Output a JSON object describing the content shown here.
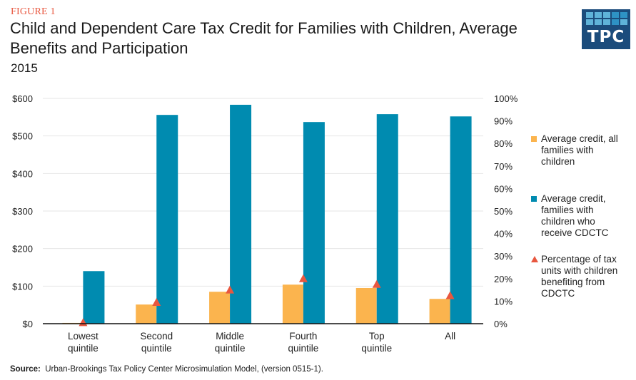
{
  "figure_label": "FIGURE 1",
  "title": "Child and Dependent Care Tax Credit for Families with Children, Average Benefits and Participation",
  "subtitle": "2015",
  "logo": {
    "text": "TPC"
  },
  "source": {
    "label": "Source:",
    "text": "Urban-Brookings Tax Policy Center Microsimulation Model, (version 0515-1)."
  },
  "colors": {
    "orange": "#fbb44e",
    "blue": "#008bb0",
    "triangle": "#e8573f",
    "gridline": "#e6e6e6",
    "axis": "#111111"
  },
  "chart_data": {
    "type": "bar",
    "title": "Child and Dependent Care Tax Credit for Families with Children, Average Benefits and Participation",
    "subtitle": "2015",
    "categories": [
      "Lowest quintile",
      "Second quintile",
      "Middle quintile",
      "Fourth quintile",
      "Top quintile",
      "All"
    ],
    "category_lines": [
      [
        "Lowest",
        "quintile"
      ],
      [
        "Second",
        "quintile"
      ],
      [
        "Middle",
        "quintile"
      ],
      [
        "Fourth",
        "quintile"
      ],
      [
        "Top",
        "quintile"
      ],
      [
        "All",
        ""
      ]
    ],
    "series": [
      {
        "name": "Average credit, all families with children",
        "type": "bar",
        "axis": "left",
        "color": "#fbb44e",
        "values": [
          2,
          51,
          85,
          104,
          95,
          66
        ]
      },
      {
        "name": "Average credit, families with children who receive CDCTC",
        "type": "bar",
        "axis": "left",
        "color": "#008bb0",
        "values": [
          140,
          556,
          583,
          537,
          558,
          552
        ]
      },
      {
        "name": "Percentage of tax units with children benefiting from CDCTC",
        "type": "scatter",
        "marker": "triangle",
        "axis": "right",
        "color": "#e8573f",
        "values": [
          0.5,
          9.5,
          15,
          20,
          17.5,
          12.5
        ]
      }
    ],
    "left_axis": {
      "ylim": [
        0,
        600
      ],
      "ticks": [
        0,
        100,
        200,
        300,
        400,
        500,
        600
      ],
      "tick_labels": [
        "$0",
        "$100",
        "$200",
        "$300",
        "$400",
        "$500",
        "$600"
      ]
    },
    "right_axis": {
      "ylim": [
        0,
        100
      ],
      "ticks": [
        0,
        10,
        20,
        30,
        40,
        50,
        60,
        70,
        80,
        90,
        100
      ],
      "tick_labels": [
        "0%",
        "10%",
        "20%",
        "30%",
        "40%",
        "50%",
        "60%",
        "70%",
        "80%",
        "90%",
        "100%"
      ]
    },
    "grid": true,
    "legend": {
      "placement": "right",
      "items": [
        {
          "lines": [
            "Average credit, all",
            "families with",
            "children"
          ]
        },
        {
          "lines": [
            "Average credit,",
            "families with",
            "children who",
            "receive CDCTC"
          ]
        },
        {
          "lines": [
            "Percentage of tax",
            "units with children",
            "benefiting from",
            "CDCTC"
          ]
        }
      ]
    }
  }
}
